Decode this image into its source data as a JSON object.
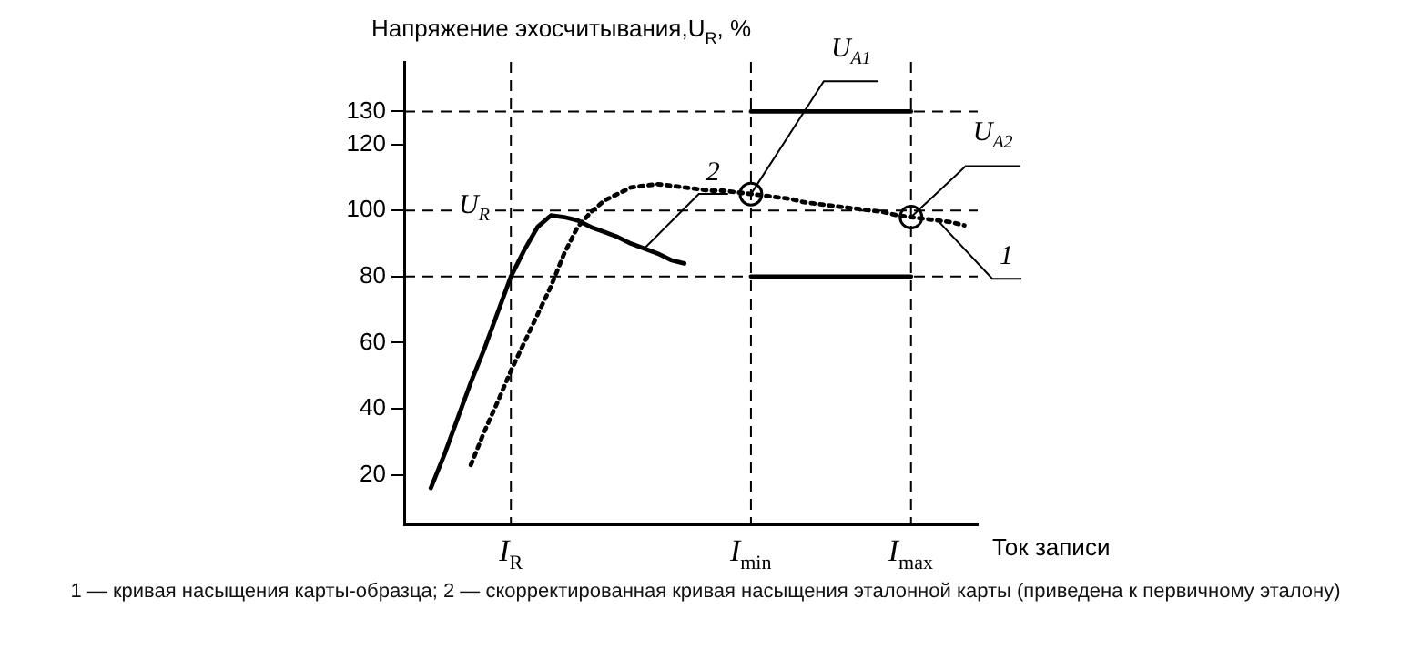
{
  "chart_data": {
    "type": "line",
    "ylabel": "Напряжение эхосчитывания,U$_{R}$, %",
    "xlabel": "Ток записи",
    "categories": [
      null,
      null,
      null,
      null,
      null,
      null,
      null,
      null,
      "I$_{R}$",
      null,
      null,
      null,
      null,
      null,
      null,
      null,
      null,
      null,
      null,
      null,
      null,
      null,
      null,
      null,
      null,
      null,
      "I$_{min}$",
      null,
      null,
      null,
      null,
      null,
      null,
      null,
      null,
      null,
      null,
      null,
      "I$_{max}$",
      null,
      null,
      null,
      null,
      null
    ],
    "ylim": [
      5,
      145
    ],
    "yticks": [
      20,
      40,
      60,
      80,
      100,
      120,
      130
    ],
    "grid": false,
    "legend": false,
    "series": [
      {
        "name": "1",
        "line_style": "dotted",
        "color": "#000000",
        "values": [
          null,
          null,
          null,
          null,
          null,
          23,
          33,
          42,
          51.5,
          60,
          68.5,
          77,
          87,
          95,
          99.5,
          103,
          105,
          107,
          107.5,
          108,
          107.5,
          107,
          106.5,
          106,
          106,
          105.5,
          105,
          104.5,
          104,
          103.5,
          102.5,
          102,
          101.5,
          101,
          100.5,
          100,
          99.5,
          98.5,
          98,
          97.5,
          97,
          96.5,
          95.5,
          null
        ]
      },
      {
        "name": "2",
        "line_style": "solid",
        "color": "#000000",
        "values": [
          null,
          null,
          16,
          26,
          37,
          48,
          58,
          69,
          80,
          88,
          95,
          98.5,
          98,
          97,
          95,
          93.5,
          92,
          90,
          88.5,
          87,
          85,
          84,
          null,
          null,
          null,
          null,
          null,
          null,
          null,
          null,
          null,
          null,
          null,
          null,
          null,
          null,
          null,
          null,
          null,
          null,
          null,
          null,
          null,
          null
        ]
      },
      {
        "line_style": "solid",
        "color": "#000000",
        "values": [
          null,
          null,
          null,
          null,
          null,
          null,
          null,
          null,
          null,
          null,
          null,
          null,
          null,
          null,
          null,
          null,
          null,
          null,
          null,
          null,
          null,
          null,
          null,
          null,
          null,
          null,
          130,
          130,
          130,
          130,
          130,
          130,
          130,
          130,
          130,
          130,
          130,
          130,
          130,
          null,
          null,
          null,
          null,
          null
        ]
      },
      {
        "line_style": "solid",
        "color": "#000000",
        "values": [
          null,
          null,
          null,
          null,
          null,
          null,
          null,
          null,
          null,
          null,
          null,
          null,
          null,
          null,
          null,
          null,
          null,
          null,
          null,
          null,
          null,
          null,
          null,
          null,
          null,
          null,
          80,
          80,
          80,
          80,
          80,
          80,
          80,
          80,
          80,
          80,
          80,
          80,
          80,
          null,
          null,
          null,
          null,
          null
        ]
      },
      {
        "type": "scatter",
        "marker": "circle",
        "color": "#000000",
        "values": [
          null,
          null,
          null,
          null,
          null,
          null,
          null,
          null,
          null,
          null,
          null,
          null,
          null,
          null,
          null,
          null,
          null,
          null,
          null,
          null,
          null,
          null,
          null,
          null,
          null,
          null,
          105,
          null,
          null,
          null,
          null,
          null,
          null,
          null,
          null,
          null,
          null,
          null,
          98,
          null,
          null,
          null,
          null,
          null
        ]
      }
    ],
    "ref_lines": [
      {
        "axis": "y",
        "value": 130,
        "label": null
      },
      {
        "axis": "y",
        "value": 100,
        "label": "U$_{R}$"
      },
      {
        "axis": "y",
        "value": 80,
        "label": null
      },
      {
        "axis": "x",
        "value": "I$_{R}$",
        "label": null
      },
      {
        "axis": "x",
        "value": "I$_{min}$",
        "label": null
      },
      {
        "axis": "x",
        "value": "I$_{max}$",
        "label": null
      }
    ],
    "annotations": [
      {
        "text": "U$_{A1}$",
        "x": "I$_{min}$",
        "y": 105
      },
      {
        "text": "U$_{A2}$",
        "x": "I$_{max}$",
        "y": 98
      },
      "1 — кривая насыщения карты-образца; 2 — скорректированная кривая насыщения эталонной карты (приведена к первичному эталону)"
    ]
  }
}
